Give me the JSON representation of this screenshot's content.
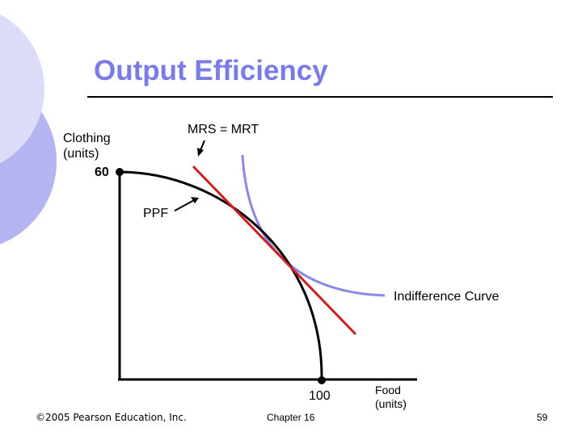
{
  "slide": {
    "title": "Output Efficiency",
    "footer_left": "©2005 Pearson Education, Inc.",
    "footer_center": "Chapter 16",
    "page_number": "59"
  },
  "diagram": {
    "y_axis_label": "Clothing (units)",
    "y_axis_max": "60",
    "x_axis_label": "Food (units)",
    "x_axis_max": "100",
    "tangency_label": "MRS = MRT",
    "ppf_label": "PPF",
    "indifference_curve_label": "Indifference Curve"
  },
  "colors": {
    "title": "#7b7be8",
    "indifference_curve": "#8a8ae6",
    "tangent_line": "#cc1f1f",
    "decor_circle_light": "#dcdcf8",
    "decor_circle_dark": "#b4b4f0"
  }
}
